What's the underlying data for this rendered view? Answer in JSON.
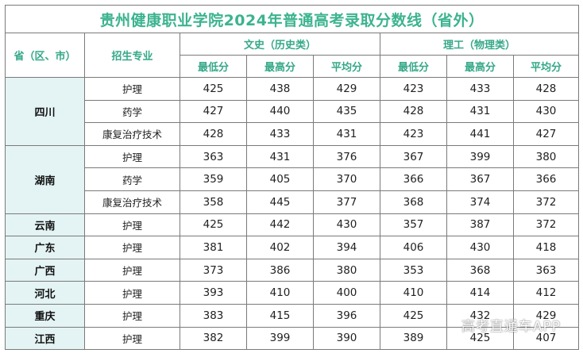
{
  "title": "贵州健康职业学院2024年普通高考录取分数线（省外）",
  "headers": {
    "province": "省（区、市）",
    "major": "招生专业",
    "arts": "文史（历史类）",
    "science": "理工（物理类）",
    "min": "最低分",
    "max": "最高分",
    "avg": "平均分"
  },
  "groups": [
    {
      "province": "四川",
      "rows": [
        {
          "major": "护理",
          "arts": [
            "425",
            "438",
            "429"
          ],
          "science": [
            "423",
            "433",
            "428"
          ]
        },
        {
          "major": "药学",
          "arts": [
            "427",
            "440",
            "435"
          ],
          "science": [
            "428",
            "431",
            "430"
          ]
        },
        {
          "major": "康复治疗技术",
          "arts": [
            "428",
            "433",
            "431"
          ],
          "science": [
            "423",
            "441",
            "427"
          ]
        }
      ]
    },
    {
      "province": "湖南",
      "rows": [
        {
          "major": "护理",
          "arts": [
            "363",
            "431",
            "376"
          ],
          "science": [
            "367",
            "399",
            "380"
          ]
        },
        {
          "major": "药学",
          "arts": [
            "359",
            "405",
            "370"
          ],
          "science": [
            "366",
            "367",
            "366"
          ]
        },
        {
          "major": "康复治疗技术",
          "arts": [
            "358",
            "445",
            "377"
          ],
          "science": [
            "368",
            "374",
            "372"
          ]
        }
      ]
    },
    {
      "province": "云南",
      "rows": [
        {
          "major": "护理",
          "arts": [
            "425",
            "442",
            "430"
          ],
          "science": [
            "357",
            "387",
            "372"
          ]
        }
      ]
    },
    {
      "province": "广东",
      "rows": [
        {
          "major": "护理",
          "arts": [
            "381",
            "402",
            "394"
          ],
          "science": [
            "406",
            "430",
            "418"
          ]
        }
      ]
    },
    {
      "province": "广西",
      "rows": [
        {
          "major": "护理",
          "arts": [
            "373",
            "386",
            "380"
          ],
          "science": [
            "353",
            "368",
            "363"
          ]
        }
      ]
    },
    {
      "province": "河北",
      "rows": [
        {
          "major": "护理",
          "arts": [
            "393",
            "410",
            "400"
          ],
          "science": [
            "410",
            "414",
            "412"
          ]
        }
      ]
    },
    {
      "province": "重庆",
      "rows": [
        {
          "major": "护理",
          "arts": [
            "383",
            "415",
            "396"
          ],
          "science": [
            "425",
            "432",
            "429"
          ]
        }
      ]
    },
    {
      "province": "江西",
      "rows": [
        {
          "major": "护理",
          "arts": [
            "382",
            "399",
            "390"
          ],
          "science": [
            "389",
            "425",
            "407"
          ]
        }
      ]
    }
  ],
  "watermark": "高考直通车APP"
}
